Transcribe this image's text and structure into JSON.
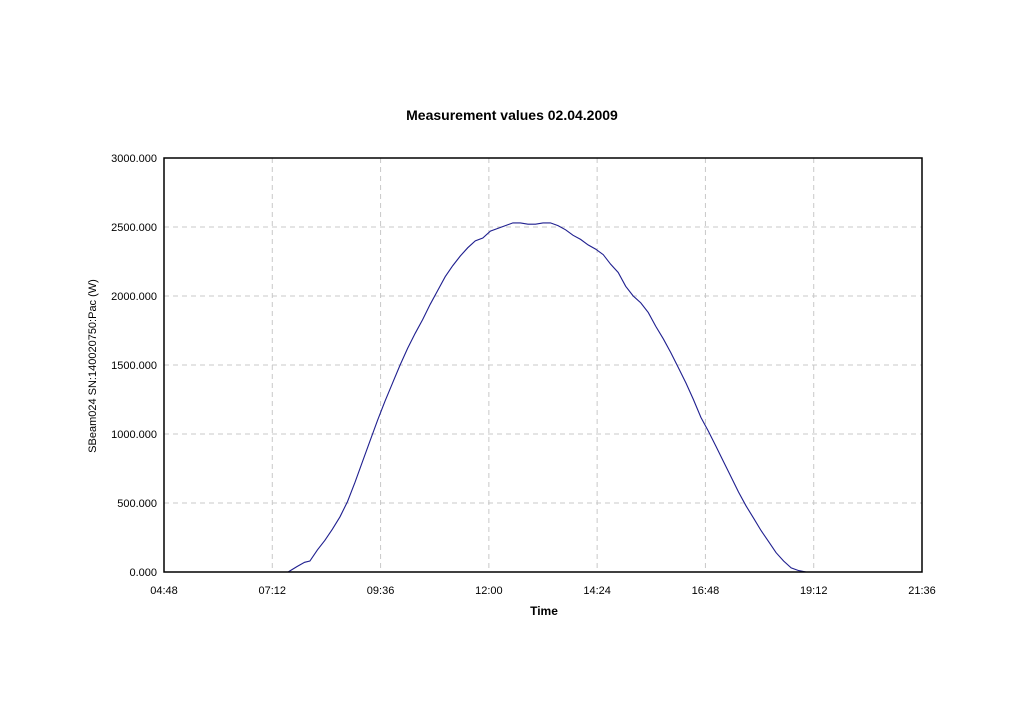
{
  "chart_data": {
    "type": "line",
    "title": "Measurement values 02.04.2009",
    "xlabel": "Time",
    "ylabel": "SBeam024 SN:140020750:Pac (W)",
    "xlim": [
      "04:48",
      "21:36"
    ],
    "ylim": [
      0,
      3000
    ],
    "x_ticks": [
      "04:48",
      "07:12",
      "09:36",
      "12:00",
      "14:24",
      "16:48",
      "19:12",
      "21:36"
    ],
    "y_ticks": [
      "0.000",
      "500.000",
      "1000.000",
      "1500.000",
      "2000.000",
      "2500.000",
      "3000.000"
    ],
    "grid": true,
    "legend": "none",
    "series": [
      {
        "color": "#1f1f8f",
        "x": [
          "07:33",
          "07:45",
          "07:55",
          "08:02",
          "08:12",
          "08:22",
          "08:32",
          "08:42",
          "08:52",
          "09:02",
          "09:12",
          "09:22",
          "09:32",
          "09:42",
          "09:52",
          "10:02",
          "10:12",
          "10:22",
          "10:32",
          "10:42",
          "10:52",
          "11:02",
          "11:12",
          "11:22",
          "11:32",
          "11:42",
          "11:52",
          "12:02",
          "12:12",
          "12:22",
          "12:32",
          "12:42",
          "12:52",
          "13:02",
          "13:12",
          "13:22",
          "13:32",
          "13:42",
          "13:52",
          "14:02",
          "14:12",
          "14:22",
          "14:32",
          "14:42",
          "14:52",
          "15:02",
          "15:12",
          "15:22",
          "15:32",
          "15:42",
          "15:52",
          "16:02",
          "16:12",
          "16:22",
          "16:32",
          "16:42",
          "16:52",
          "17:02",
          "17:12",
          "17:22",
          "17:32",
          "17:42",
          "17:52",
          "18:02",
          "18:12",
          "18:22",
          "18:32",
          "18:42",
          "18:52",
          "19:02",
          "19:12",
          "19:22",
          "19:32",
          "19:42",
          "19:52",
          "20:00"
        ],
        "values": [
          0,
          40,
          70,
          80,
          160,
          230,
          310,
          400,
          510,
          650,
          800,
          950,
          1100,
          1240,
          1370,
          1500,
          1620,
          1730,
          1830,
          1940,
          2040,
          2140,
          2220,
          2290,
          2350,
          2400,
          2420,
          2470,
          2490,
          2510,
          2530,
          2530,
          2520,
          2520,
          2530,
          2530,
          2510,
          2480,
          2440,
          2410,
          2370,
          2340,
          2300,
          2230,
          2170,
          2070,
          2000,
          1950,
          1880,
          1780,
          1690,
          1590,
          1480,
          1370,
          1250,
          1120,
          1020,
          910,
          800,
          690,
          580,
          480,
          390,
          300,
          220,
          140,
          80,
          30,
          10,
          0,
          0,
          0,
          0,
          0,
          0,
          0
        ]
      }
    ]
  }
}
